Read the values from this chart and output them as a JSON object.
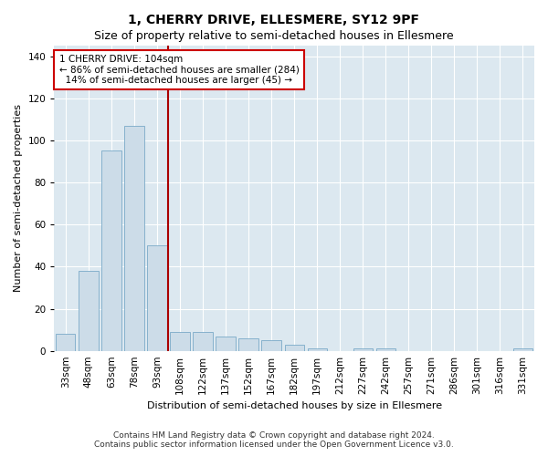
{
  "title1": "1, CHERRY DRIVE, ELLESMERE, SY12 9PF",
  "title2": "Size of property relative to semi-detached houses in Ellesmere",
  "xlabel": "Distribution of semi-detached houses by size in Ellesmere",
  "ylabel": "Number of semi-detached properties",
  "categories": [
    "33sqm",
    "48sqm",
    "63sqm",
    "78sqm",
    "93sqm",
    "108sqm",
    "122sqm",
    "137sqm",
    "152sqm",
    "167sqm",
    "182sqm",
    "197sqm",
    "212sqm",
    "227sqm",
    "242sqm",
    "257sqm",
    "271sqm",
    "286sqm",
    "301sqm",
    "316sqm",
    "331sqm"
  ],
  "values": [
    8,
    38,
    95,
    107,
    50,
    9,
    9,
    7,
    6,
    5,
    3,
    1,
    0,
    1,
    1,
    0,
    0,
    0,
    0,
    0,
    1
  ],
  "bar_color": "#ccdce8",
  "bar_edge_color": "#7aaac8",
  "vline_color": "#aa0000",
  "vline_x": 4.5,
  "ann_line1": "1 CHERRY DRIVE: 104sqm",
  "ann_line2": "← 86% of semi-detached houses are smaller (284)",
  "ann_line3": "  14% of semi-detached houses are larger (45) →",
  "ann_box_color": "#cc0000",
  "bg_color": "#dce8f0",
  "grid_color": "#ffffff",
  "footer1": "Contains HM Land Registry data © Crown copyright and database right 2024.",
  "footer2": "Contains public sector information licensed under the Open Government Licence v3.0.",
  "ylim": [
    0,
    145
  ],
  "yticks": [
    0,
    20,
    40,
    60,
    80,
    100,
    120,
    140
  ],
  "title1_fontsize": 10,
  "title2_fontsize": 9,
  "ylabel_fontsize": 8,
  "xlabel_fontsize": 8,
  "tick_fontsize": 7.5,
  "ann_fontsize": 7.5,
  "footer_fontsize": 6.5
}
